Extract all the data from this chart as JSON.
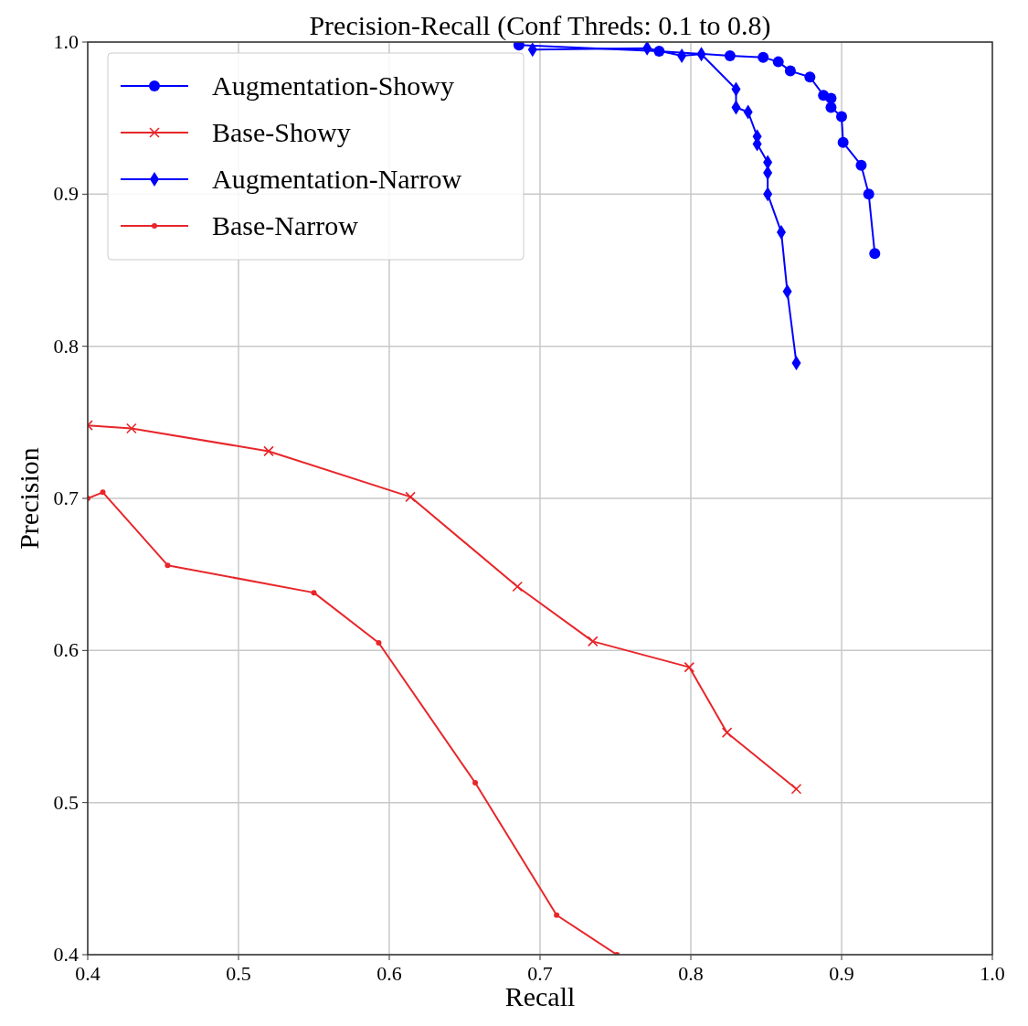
{
  "chart_data": {
    "type": "line",
    "title": "Precision-Recall (Conf Threds: 0.1 to 0.8)",
    "xlabel": "Recall",
    "ylabel": "Precision",
    "xlim": [
      0.4,
      1.0
    ],
    "ylim": [
      0.4,
      1.0
    ],
    "xticks": [
      0.4,
      0.5,
      0.6,
      0.7,
      0.8,
      0.9,
      {
        "value": 1,
        "label": "1.0"
      }
    ],
    "yticks": [
      0.4,
      0.5,
      0.6,
      0.7,
      0.8,
      0.9,
      {
        "value": 1,
        "label": "1.0"
      }
    ],
    "grid": true,
    "legend": "top left",
    "series": [
      {
        "name": "Augmentation-Showy",
        "color": "#0000ff",
        "marker": "circle",
        "x": [
          0.686,
          0.779,
          0.826,
          0.848,
          0.858,
          0.866,
          0.879,
          0.888,
          0.893,
          0.893,
          0.9,
          0.901,
          0.913,
          0.918,
          0.922
        ],
        "values": [
          0.998,
          0.994,
          0.991,
          0.99,
          0.987,
          0.981,
          0.977,
          0.965,
          0.963,
          0.957,
          0.951,
          0.934,
          0.919,
          0.9,
          0.861
        ]
      },
      {
        "name": "Base-Showy",
        "color": "#e8262a",
        "marker": "cross",
        "x": [
          0.4,
          0.429,
          0.52,
          0.614,
          0.685,
          0.735,
          0.799,
          0.824,
          0.87
        ],
        "values": [
          0.748,
          0.746,
          0.731,
          0.701,
          0.642,
          0.606,
          0.589,
          0.546,
          0.509
        ]
      },
      {
        "name": "Augmentation-Narrow",
        "color": "#0000ff",
        "marker": "diamond",
        "x": [
          0.695,
          0.771,
          0.794,
          0.807,
          0.83,
          0.83,
          0.838,
          0.844,
          0.844,
          0.851,
          0.851,
          0.851,
          0.86,
          0.864,
          0.87
        ],
        "values": [
          0.995,
          0.996,
          0.991,
          0.992,
          0.969,
          0.957,
          0.954,
          0.938,
          0.933,
          0.921,
          0.914,
          0.9,
          0.875,
          0.836,
          0.789
        ]
      },
      {
        "name": "Base-Narrow",
        "color": "#e8262a",
        "marker": "point",
        "x": [
          0.4,
          0.41,
          0.453,
          0.55,
          0.593,
          0.657,
          0.711,
          0.751
        ],
        "values": [
          0.7,
          0.704,
          0.656,
          0.638,
          0.605,
          0.513,
          0.426,
          0.4
        ]
      }
    ]
  }
}
